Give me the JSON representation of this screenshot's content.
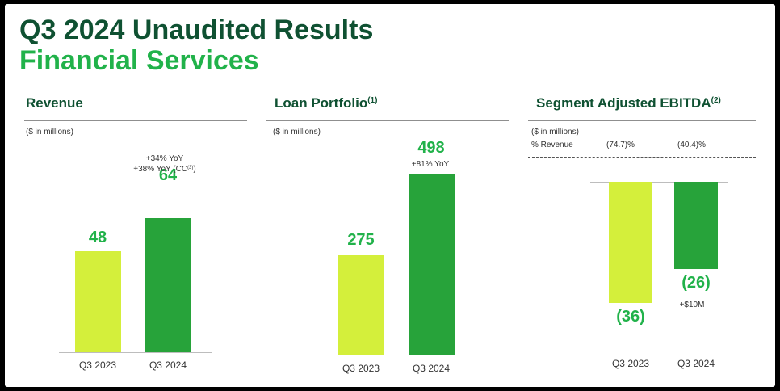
{
  "header": {
    "title_line1": "Q3 2024 Unaudited Results",
    "title_line2": "Financial Services"
  },
  "panels": {
    "revenue": {
      "title": "Revenue",
      "units": "($ in millions)",
      "notes_q3_2024": [
        "+34% YoY",
        "+38% YoY (CC",
        "(3)",
        ")"
      ]
    },
    "loan": {
      "title": "Loan Portfolio",
      "title_sup": "(1)",
      "units": "($ in millions)",
      "notes_q3_2024": [
        "+81% YoY"
      ]
    },
    "ebitda": {
      "title": "Segment Adjusted EBITDA",
      "title_sup": "(2)",
      "units": "($ in millions)",
      "pct_revenue_label": "% Revenue",
      "pct_revenue_values": [
        "(74.7)%",
        "(40.4)%"
      ],
      "notes_q3_2024": [
        "+$10M"
      ]
    }
  },
  "colors": {
    "q3_2023": "#d4ef3b",
    "q3_2024": "#27a33a",
    "accent": "#21b24a",
    "title": "#0f5132"
  },
  "chart_data": [
    {
      "type": "bar",
      "title": "Revenue",
      "categories": [
        "Q3 2023",
        "Q3 2024"
      ],
      "values": [
        48,
        64
      ],
      "value_labels": [
        "48",
        "64"
      ],
      "ylabel": "($ in millions)",
      "grid": false
    },
    {
      "type": "bar",
      "title": "Loan Portfolio",
      "categories": [
        "Q3 2023",
        "Q3 2024"
      ],
      "values": [
        275,
        498
      ],
      "value_labels": [
        "275",
        "498"
      ],
      "ylabel": "($ in millions)",
      "grid": false
    },
    {
      "type": "bar",
      "title": "Segment Adjusted EBITDA",
      "categories": [
        "Q3 2023",
        "Q3 2024"
      ],
      "values": [
        -36,
        -26
      ],
      "value_labels": [
        "(36)",
        "(26)"
      ],
      "ylabel": "($ in millions)",
      "grid": false
    }
  ]
}
